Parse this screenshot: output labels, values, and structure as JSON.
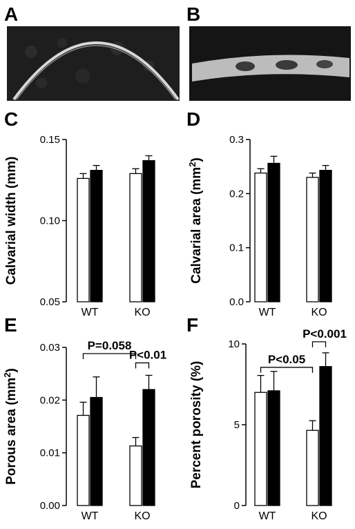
{
  "panels": {
    "A": {
      "label": "A"
    },
    "B": {
      "label": "B"
    },
    "C": {
      "label": "C"
    },
    "D": {
      "label": "D"
    },
    "E": {
      "label": "E"
    },
    "F": {
      "label": "F"
    }
  },
  "colors": {
    "wt_bar": "#ffffff",
    "ko_bar": "#000000",
    "axis": "#000000"
  },
  "chart_data": [
    {
      "id": "C",
      "type": "bar",
      "ylabel": "Calvarial width (mm)",
      "categories": [
        "WT",
        "KO"
      ],
      "ylim": [
        0.05,
        0.15
      ],
      "yticks": [
        "0.05",
        "0.10",
        "0.15"
      ],
      "yticks_values": [
        0.05,
        0.1,
        0.15
      ],
      "series": [
        {
          "fill": "white",
          "values": [
            0.126,
            0.129
          ],
          "errors": [
            0.003,
            0.003
          ]
        },
        {
          "fill": "black",
          "values": [
            0.131,
            0.137
          ],
          "errors": [
            0.003,
            0.003
          ]
        }
      ],
      "annotations": []
    },
    {
      "id": "D",
      "type": "bar",
      "ylabel": "Calvarial area (mm2)",
      "categories": [
        "WT",
        "KO"
      ],
      "ylim": [
        0.0,
        0.3
      ],
      "yticks": [
        "0.0",
        "0.1",
        "0.2",
        "0.3"
      ],
      "yticks_values": [
        0.0,
        0.1,
        0.2,
        0.3
      ],
      "series": [
        {
          "fill": "white",
          "values": [
            0.238,
            0.23
          ],
          "errors": [
            0.008,
            0.008
          ]
        },
        {
          "fill": "black",
          "values": [
            0.256,
            0.243
          ],
          "errors": [
            0.013,
            0.009
          ]
        }
      ],
      "annotations": []
    },
    {
      "id": "E",
      "type": "bar",
      "ylabel": "Porous area (mm2)",
      "categories": [
        "WT",
        "KO"
      ],
      "ylim": [
        0.0,
        0.03
      ],
      "yticks": [
        "0.00",
        "0.01",
        "0.02",
        "0.03"
      ],
      "yticks_values": [
        0.0,
        0.01,
        0.02,
        0.03
      ],
      "series": [
        {
          "fill": "white",
          "values": [
            0.0171,
            0.0113
          ],
          "errors": [
            0.0025,
            0.0016
          ]
        },
        {
          "fill": "black",
          "values": [
            0.0205,
            0.022
          ],
          "errors": [
            0.0039,
            0.0027
          ]
        }
      ],
      "annotations": [
        {
          "text": "P=0.058",
          "from": [
            0,
            0
          ],
          "to": [
            1,
            0
          ]
        },
        {
          "text": "P<0.01",
          "from": [
            1,
            0
          ],
          "to": [
            1,
            1
          ]
        }
      ]
    },
    {
      "id": "F",
      "type": "bar",
      "ylabel": "Percent porosity (%)",
      "categories": [
        "WT",
        "KO"
      ],
      "ylim": [
        0,
        10
      ],
      "yticks": [
        "0",
        "5",
        "10"
      ],
      "yticks_values": [
        0,
        5,
        10
      ],
      "series": [
        {
          "fill": "white",
          "values": [
            7.0,
            4.65
          ],
          "errors": [
            1.05,
            0.6
          ]
        },
        {
          "fill": "black",
          "values": [
            7.1,
            8.6
          ],
          "errors": [
            1.2,
            0.85
          ]
        }
      ],
      "annotations": [
        {
          "text": "P<0.05",
          "from": [
            0,
            0
          ],
          "to": [
            1,
            0
          ]
        },
        {
          "text": "P<0.001",
          "from": [
            1,
            0
          ],
          "to": [
            1,
            1
          ]
        }
      ]
    }
  ]
}
